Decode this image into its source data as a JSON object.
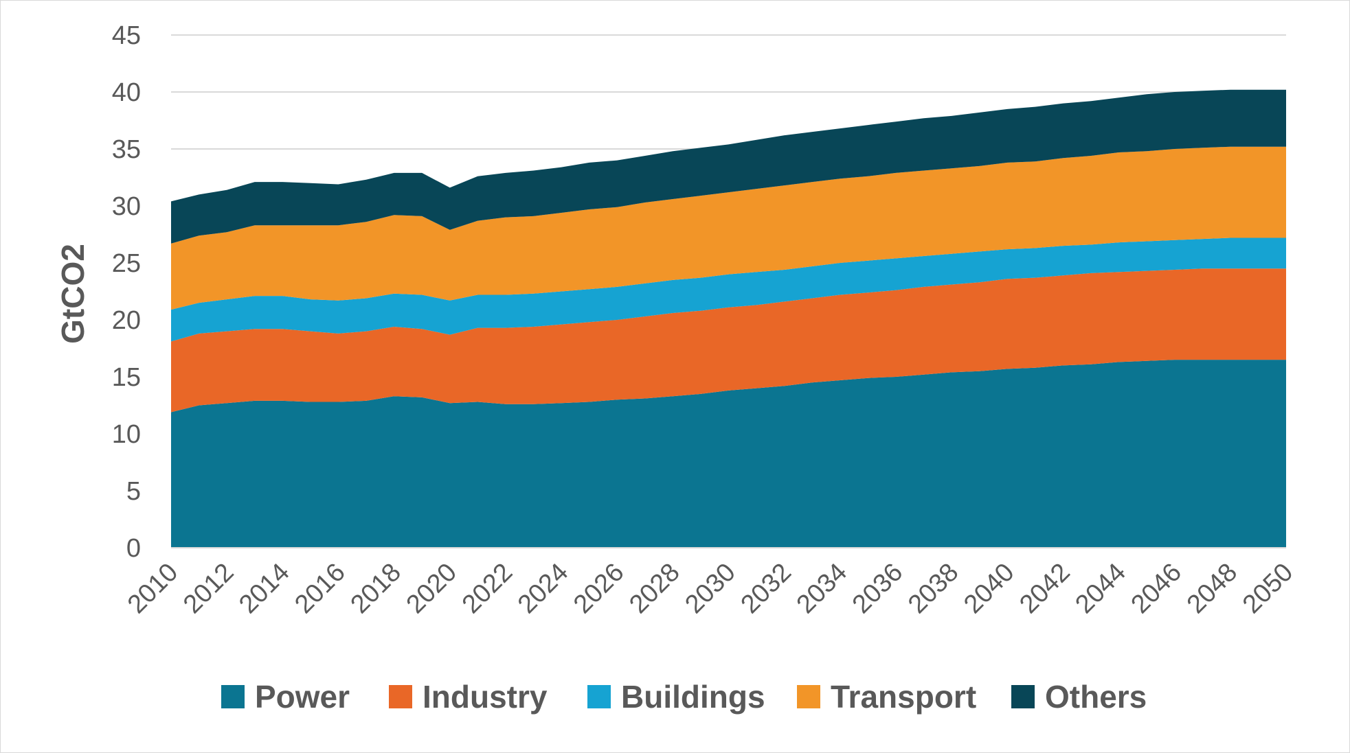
{
  "chart_data": {
    "type": "area",
    "stacked": true,
    "title": "",
    "xlabel": "",
    "ylabel": "GtCO2",
    "ylim": [
      0,
      45
    ],
    "yticks": [
      0,
      5,
      10,
      15,
      20,
      25,
      30,
      35,
      40,
      45
    ],
    "grid": "horizontal",
    "legend_position": "bottom",
    "x": [
      2010,
      2011,
      2012,
      2013,
      2014,
      2015,
      2016,
      2017,
      2018,
      2019,
      2020,
      2021,
      2022,
      2023,
      2024,
      2025,
      2026,
      2027,
      2028,
      2029,
      2030,
      2031,
      2032,
      2033,
      2034,
      2035,
      2036,
      2037,
      2038,
      2039,
      2040,
      2041,
      2042,
      2043,
      2044,
      2045,
      2046,
      2047,
      2048,
      2049,
      2050
    ],
    "xtick_labels": [
      "2010",
      "2012",
      "2014",
      "2016",
      "2018",
      "2020",
      "2022",
      "2024",
      "2026",
      "2028",
      "2030",
      "2032",
      "2034",
      "2036",
      "2038",
      "2040",
      "2042",
      "2044",
      "2046",
      "2048",
      "2050"
    ],
    "series": [
      {
        "name": "Power",
        "color": "#0b7591",
        "values": [
          11.9,
          12.5,
          12.7,
          12.9,
          12.9,
          12.8,
          12.8,
          12.9,
          13.3,
          13.2,
          12.7,
          12.8,
          12.6,
          12.6,
          12.7,
          12.8,
          13.0,
          13.1,
          13.3,
          13.5,
          13.8,
          14.0,
          14.2,
          14.5,
          14.7,
          14.9,
          15.0,
          15.2,
          15.4,
          15.5,
          15.7,
          15.8,
          16.0,
          16.1,
          16.3,
          16.4,
          16.5,
          16.5,
          16.5,
          16.5,
          16.5
        ]
      },
      {
        "name": "Industry",
        "color": "#e96727",
        "values": [
          6.2,
          6.3,
          6.3,
          6.3,
          6.3,
          6.2,
          6.0,
          6.1,
          6.1,
          6.0,
          6.0,
          6.5,
          6.7,
          6.8,
          6.9,
          7.0,
          7.0,
          7.2,
          7.3,
          7.3,
          7.3,
          7.3,
          7.4,
          7.4,
          7.5,
          7.5,
          7.6,
          7.7,
          7.7,
          7.8,
          7.9,
          7.9,
          7.9,
          8.0,
          7.9,
          7.9,
          7.9,
          8.0,
          8.0,
          8.0,
          8.0
        ]
      },
      {
        "name": "Buildings",
        "color": "#16a3d2",
        "values": [
          2.8,
          2.7,
          2.8,
          2.9,
          2.9,
          2.8,
          2.9,
          2.9,
          2.9,
          3.0,
          3.0,
          2.9,
          2.9,
          2.9,
          2.9,
          2.9,
          2.9,
          2.9,
          2.9,
          2.9,
          2.9,
          2.9,
          2.8,
          2.8,
          2.8,
          2.8,
          2.8,
          2.7,
          2.7,
          2.7,
          2.6,
          2.6,
          2.6,
          2.5,
          2.6,
          2.6,
          2.6,
          2.6,
          2.7,
          2.7,
          2.7
        ]
      },
      {
        "name": "Transport",
        "color": "#f29528",
        "values": [
          5.8,
          5.9,
          5.9,
          6.2,
          6.2,
          6.5,
          6.6,
          6.7,
          6.9,
          6.9,
          6.2,
          6.5,
          6.8,
          6.8,
          6.9,
          7.0,
          7.0,
          7.1,
          7.1,
          7.2,
          7.2,
          7.3,
          7.4,
          7.4,
          7.4,
          7.4,
          7.5,
          7.5,
          7.5,
          7.5,
          7.6,
          7.6,
          7.7,
          7.8,
          7.9,
          7.9,
          8.0,
          8.0,
          8.0,
          8.0,
          8.0
        ]
      },
      {
        "name": "Others",
        "color": "#084657",
        "values": [
          3.7,
          3.6,
          3.7,
          3.8,
          3.8,
          3.7,
          3.6,
          3.7,
          3.7,
          3.8,
          3.7,
          3.9,
          3.9,
          4.0,
          4.0,
          4.1,
          4.1,
          4.1,
          4.2,
          4.2,
          4.2,
          4.3,
          4.4,
          4.4,
          4.4,
          4.5,
          4.5,
          4.6,
          4.6,
          4.7,
          4.7,
          4.8,
          4.8,
          4.8,
          4.8,
          5.0,
          5.0,
          5.0,
          5.0,
          5.0,
          5.0
        ]
      }
    ]
  },
  "colors": {
    "text": "#595959",
    "gridline": "#d9d9d9"
  }
}
